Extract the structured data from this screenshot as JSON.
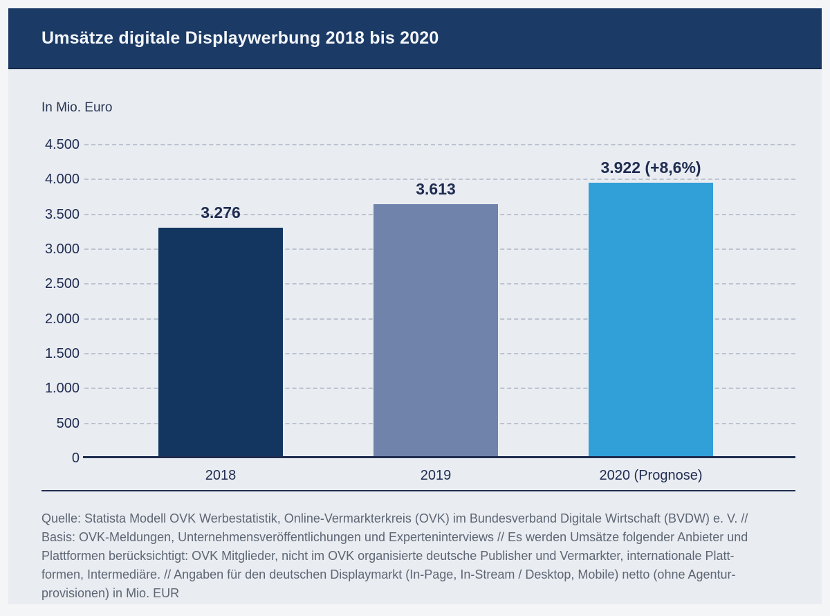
{
  "header": {
    "title": "Umsätze digitale Displaywerbung 2018 bis 2020"
  },
  "chart_data": {
    "type": "bar",
    "title": "Umsätze digitale Displaywerbung 2018 bis 2020",
    "unit_label": "In Mio. Euro",
    "categories": [
      "2018",
      "2019",
      "2020 (Prognose)"
    ],
    "values": [
      3276,
      3613,
      3922
    ],
    "value_labels": [
      "3.276",
      "3.613",
      "3.922 (+8,6%)"
    ],
    "bar_colors": [
      "#123660",
      "#7083ab",
      "#319fd8"
    ],
    "ylim": [
      0,
      4500
    ],
    "ytick_step": 500,
    "yticks": [
      {
        "value": 0,
        "label": "0"
      },
      {
        "value": 500,
        "label": "500"
      },
      {
        "value": 1000,
        "label": "1.000"
      },
      {
        "value": 1500,
        "label": "1.500"
      },
      {
        "value": 2000,
        "label": "2.000"
      },
      {
        "value": 2500,
        "label": "2.500"
      },
      {
        "value": 3000,
        "label": "3.000"
      },
      {
        "value": 3500,
        "label": "3.500"
      },
      {
        "value": 4000,
        "label": "4.000"
      },
      {
        "value": 4500,
        "label": "4.500"
      }
    ],
    "grid": "horizontal dashed",
    "legend": "none",
    "xlabel": "",
    "ylabel": "In Mio. Euro"
  },
  "footer": {
    "lines": [
      "Quelle: Statista Modell OVK Werbestatistik, Online-Vermarkterkreis (OVK) im Bundesverband Digitale Wirtschaft (BVDW) e. V. //",
      "Basis: OVK-Meldungen, Unternehmensveröffentlichungen und Experteninterviews // Es werden Umsätze folgender Anbieter und",
      "Plattformen berücksichtigt: OVK Mitglieder, nicht im OVK organisierte deutsche Publisher und Vermarkter, internationale Platt-",
      "formen, Intermediäre. // Angaben für den deutschen Displaymarkt (In-Page, In-Stream / Desktop, Mobile) netto (ohne Agentur-",
      "provisionen) in Mio. EUR"
    ]
  },
  "colors": {
    "header_background": "#1b3a66",
    "panel_background": "#e9ecf1",
    "outer_background": "#f4f5f6",
    "bar_2018": "#123660",
    "bar_2019": "#7083ab",
    "bar_2020": "#319fd8",
    "axis_text": "#1f2c50",
    "gridline": "#bcc3cf",
    "footer_text": "#5d6673"
  }
}
